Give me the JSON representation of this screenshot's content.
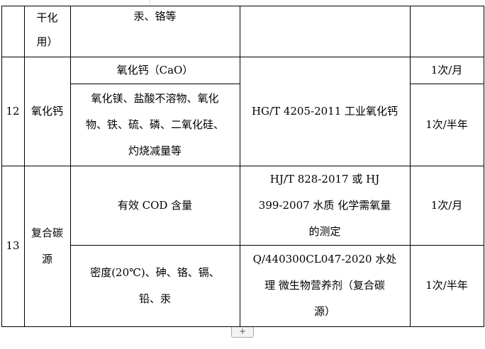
{
  "table": {
    "row_prev": {
      "name_lines": [
        "干化",
        "用）"
      ],
      "item": "汞、铬等"
    },
    "row12": {
      "no": "12",
      "name": "氧化钙",
      "items": [
        {
          "lines": [
            "氧化钙（CaO）"
          ],
          "freq": "1次/月"
        },
        {
          "lines": [
            "氧化镁、盐酸不溶物、氧化",
            "物、铁、硫、磷、二氧化硅、",
            "灼烧减量等"
          ],
          "freq": "1次/半年"
        }
      ],
      "standard": "HG/T 4205-2011 工业氧化钙"
    },
    "row13": {
      "no": "13",
      "name_lines": [
        "复合碳",
        "源"
      ],
      "items": [
        {
          "lines": [
            "有效 COD 含量"
          ],
          "standard_lines": [
            "HJ/T 828-2017 或 HJ",
            "399-2007 水质 化学需氧量",
            "的测定"
          ],
          "freq": "1次/月"
        },
        {
          "lines": [
            "密度(20℃)、砷、铬、镉、",
            "铅、汞"
          ],
          "standard_lines": [
            "Q/440300CL047-2020 水处",
            "理 微生物营养剂（复合碳",
            "源）"
          ],
          "freq": "1次/半年"
        }
      ]
    }
  },
  "add_row_button": "+"
}
